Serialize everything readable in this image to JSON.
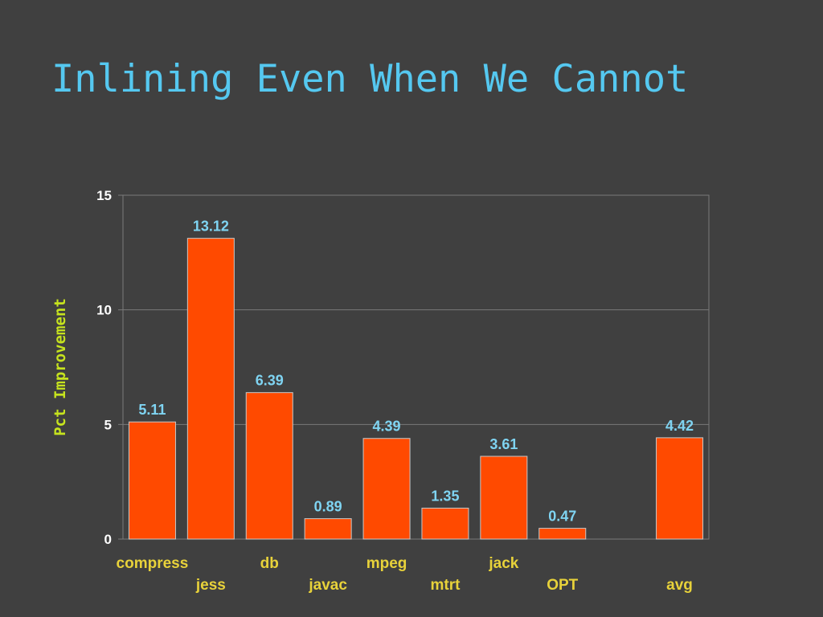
{
  "slide": {
    "title": "Inlining Even When We Cannot"
  },
  "chart_data": {
    "type": "bar",
    "title": "",
    "xlabel": "",
    "ylabel": "Pct Improvement",
    "ylim": [
      0,
      15
    ],
    "yticks": [
      "0",
      "5",
      "10",
      "15"
    ],
    "grid": true,
    "legend": "none",
    "categories": [
      "compress",
      "jess",
      "db",
      "javac",
      "mpeg",
      "mtrt",
      "jack",
      "OPT",
      "",
      "avg"
    ],
    "values": [
      5.11,
      13.12,
      6.39,
      0.89,
      4.39,
      1.35,
      3.61,
      0.47,
      null,
      4.42
    ],
    "value_labels": [
      "5.11",
      "13.12",
      "6.39",
      "0.89",
      "4.39",
      "1.35",
      "3.61",
      "0.47",
      "",
      "4.42"
    ],
    "colors": {
      "bar": "#FF4A00",
      "value_label": "#7FD4F2",
      "category_label": "#E8D23A",
      "axis_label": "#C6E31E",
      "gridline": "#7A7A7A"
    }
  }
}
